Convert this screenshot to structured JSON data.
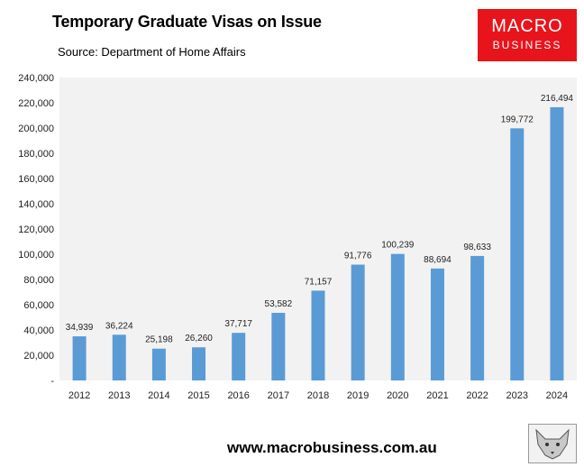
{
  "header": {
    "title": "Temporary Graduate Visas on Issue",
    "subtitle": "Source: Department of Home Affairs"
  },
  "logo": {
    "line1": "MACRO",
    "line2": "BUSINESS",
    "color": "#e8141c"
  },
  "footer": {
    "url": "www.macrobusiness.com.au"
  },
  "colors": {
    "bar": "#5b9bd5",
    "plot_bg": "#f2f2f2"
  },
  "chart_data": {
    "type": "bar",
    "title": "Temporary Graduate Visas on Issue",
    "subtitle": "Source: Department of Home Affairs",
    "categories": [
      "2012",
      "2013",
      "2014",
      "2015",
      "2016",
      "2017",
      "2018",
      "2019",
      "2020",
      "2021",
      "2022",
      "2023",
      "2024"
    ],
    "values": [
      34939,
      36224,
      25198,
      26260,
      37717,
      53582,
      71157,
      91776,
      100239,
      88694,
      98633,
      199772,
      216494
    ],
    "data_labels": [
      "34,939",
      "36,224",
      "25,198",
      "26,260",
      "37,717",
      "53,582",
      "71,157",
      "91,776",
      "100,239",
      "88,694",
      "98,633",
      "199,772",
      "216,494"
    ],
    "ylim": [
      0,
      240000
    ],
    "yticks": [
      0,
      20000,
      40000,
      60000,
      80000,
      100000,
      120000,
      140000,
      160000,
      180000,
      200000,
      220000,
      240000
    ],
    "ytick_labels": [
      "-",
      "20,000",
      "40,000",
      "60,000",
      "80,000",
      "100,000",
      "120,000",
      "140,000",
      "160,000",
      "180,000",
      "200,000",
      "220,000",
      "240,000"
    ],
    "xlabel": "",
    "ylabel": "",
    "grid": false,
    "legend": "none"
  }
}
